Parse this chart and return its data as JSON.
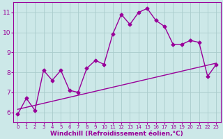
{
  "main_line_x": [
    0,
    1,
    2,
    3,
    4,
    5,
    6,
    7,
    8,
    9,
    10,
    11,
    12,
    13,
    14,
    15,
    16,
    17,
    18,
    19,
    20,
    21,
    22,
    23
  ],
  "main_line_y": [
    5.9,
    6.7,
    6.1,
    8.1,
    7.6,
    8.1,
    7.1,
    7.0,
    8.2,
    8.6,
    8.4,
    9.9,
    10.9,
    10.4,
    11.0,
    11.2,
    10.6,
    10.3,
    9.4,
    9.4,
    9.6,
    9.5,
    7.8,
    8.4
  ],
  "trend_line_x": [
    0,
    23
  ],
  "trend_line_y": [
    6.15,
    8.46
  ],
  "line_color": "#990099",
  "bg_color": "#cce8e8",
  "grid_color": "#aacccc",
  "xlabel": "Windchill (Refroidissement éolien,°C)",
  "ylim": [
    5.5,
    11.5
  ],
  "xlim": [
    -0.5,
    23.5
  ],
  "yticks": [
    6,
    7,
    8,
    9,
    10,
    11
  ],
  "xticks": [
    0,
    1,
    2,
    3,
    4,
    5,
    6,
    7,
    8,
    9,
    10,
    11,
    12,
    13,
    14,
    15,
    16,
    17,
    18,
    19,
    20,
    21,
    22,
    23
  ],
  "marker": "D",
  "markersize": 2.5,
  "linewidth": 1.0,
  "xlabel_fontsize": 6.5,
  "tick_fontsize_x": 5.0,
  "tick_fontsize_y": 6.5
}
